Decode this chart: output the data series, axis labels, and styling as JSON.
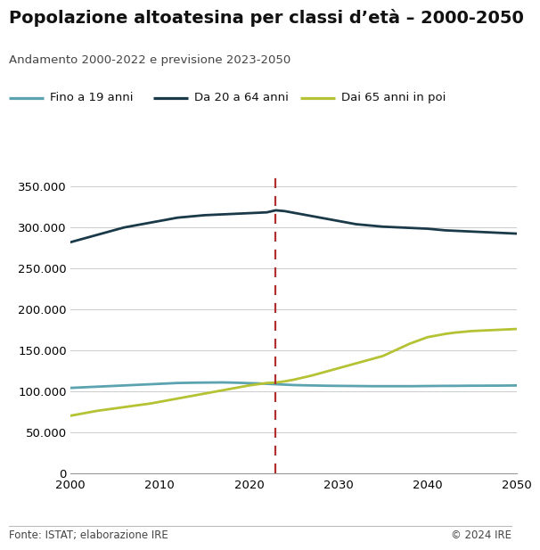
{
  "title": "Popolazione altoatesina per classi d’età – 2000-2050",
  "subtitle": "Andamento 2000-2022 e previsione 2023-2050",
  "footer_left": "Fonte: ISTAT; elaborazione IRE",
  "footer_right": "© 2024 IRE",
  "legend": [
    "Fino a 19 anni",
    "Da 20 a 64 anni",
    "Dai 65 anni in poi"
  ],
  "colors": [
    "#5ba3b0",
    "#1a3a4a",
    "#b5c234"
  ],
  "vline_x": 2023,
  "vline_color": "#b03030",
  "ylim": [
    0,
    370000
  ],
  "yticks": [
    0,
    50000,
    100000,
    150000,
    200000,
    250000,
    300000,
    350000
  ],
  "xlim": [
    2000,
    2050
  ],
  "xticks": [
    2000,
    2010,
    2020,
    2030,
    2040,
    2050
  ],
  "background_color": "#ffffff",
  "grid_color": "#cccccc",
  "series": {
    "under20": {
      "years": [
        2000,
        2001,
        2002,
        2003,
        2004,
        2005,
        2006,
        2007,
        2008,
        2009,
        2010,
        2011,
        2012,
        2013,
        2014,
        2015,
        2016,
        2017,
        2018,
        2019,
        2020,
        2021,
        2022,
        2023,
        2024,
        2025,
        2026,
        2027,
        2028,
        2029,
        2030,
        2031,
        2032,
        2033,
        2034,
        2035,
        2036,
        2037,
        2038,
        2039,
        2040,
        2041,
        2042,
        2043,
        2044,
        2045,
        2046,
        2047,
        2048,
        2049,
        2050
      ],
      "values": [
        104000,
        104500,
        105000,
        105500,
        106000,
        106500,
        107000,
        107500,
        108000,
        108500,
        109000,
        109500,
        110000,
        110200,
        110400,
        110500,
        110600,
        110700,
        110500,
        110200,
        109800,
        109500,
        109000,
        108500,
        108000,
        107500,
        107200,
        107000,
        106800,
        106600,
        106500,
        106400,
        106300,
        106200,
        106100,
        106100,
        106100,
        106100,
        106100,
        106200,
        106300,
        106400,
        106500,
        106500,
        106600,
        106700,
        106700,
        106800,
        106800,
        106900,
        107000
      ]
    },
    "working": {
      "years": [
        2000,
        2001,
        2002,
        2003,
        2004,
        2005,
        2006,
        2007,
        2008,
        2009,
        2010,
        2011,
        2012,
        2013,
        2014,
        2015,
        2016,
        2017,
        2018,
        2019,
        2020,
        2021,
        2022,
        2023,
        2024,
        2025,
        2026,
        2027,
        2028,
        2029,
        2030,
        2031,
        2032,
        2033,
        2034,
        2035,
        2036,
        2037,
        2038,
        2039,
        2040,
        2041,
        2042,
        2043,
        2044,
        2045,
        2046,
        2047,
        2048,
        2049,
        2050
      ],
      "values": [
        282000,
        285000,
        288000,
        291000,
        294000,
        297000,
        300000,
        302000,
        304000,
        306000,
        308000,
        310000,
        312000,
        313000,
        314000,
        315000,
        315500,
        316000,
        316500,
        317000,
        317500,
        318000,
        318500,
        321000,
        320000,
        318000,
        316000,
        314000,
        312000,
        310000,
        308000,
        306000,
        304000,
        303000,
        302000,
        301000,
        300500,
        300000,
        299500,
        299000,
        298500,
        297500,
        296500,
        296000,
        295500,
        295000,
        294500,
        294000,
        293500,
        293000,
        292500
      ]
    },
    "over65": {
      "years": [
        2000,
        2001,
        2002,
        2003,
        2004,
        2005,
        2006,
        2007,
        2008,
        2009,
        2010,
        2011,
        2012,
        2013,
        2014,
        2015,
        2016,
        2017,
        2018,
        2019,
        2020,
        2021,
        2022,
        2023,
        2024,
        2025,
        2026,
        2027,
        2028,
        2029,
        2030,
        2031,
        2032,
        2033,
        2034,
        2035,
        2036,
        2037,
        2038,
        2039,
        2040,
        2041,
        2042,
        2043,
        2044,
        2045,
        2046,
        2047,
        2048,
        2049,
        2050
      ],
      "values": [
        70000,
        72000,
        74000,
        76000,
        77500,
        79000,
        80500,
        82000,
        83500,
        85000,
        87000,
        89000,
        91000,
        93000,
        95000,
        97000,
        99000,
        101000,
        103000,
        105000,
        107000,
        108500,
        110000,
        110500,
        112000,
        114000,
        116500,
        119000,
        122000,
        125000,
        128000,
        131000,
        134000,
        137000,
        140000,
        143000,
        148000,
        153000,
        158000,
        162000,
        166000,
        168000,
        170000,
        171500,
        172500,
        173500,
        174000,
        174500,
        175000,
        175500,
        176000
      ]
    }
  },
  "title_fontsize": 14,
  "subtitle_fontsize": 9.5,
  "legend_fontsize": 9.5,
  "tick_fontsize": 9.5,
  "footer_fontsize": 8.5,
  "line_width": 2.0
}
